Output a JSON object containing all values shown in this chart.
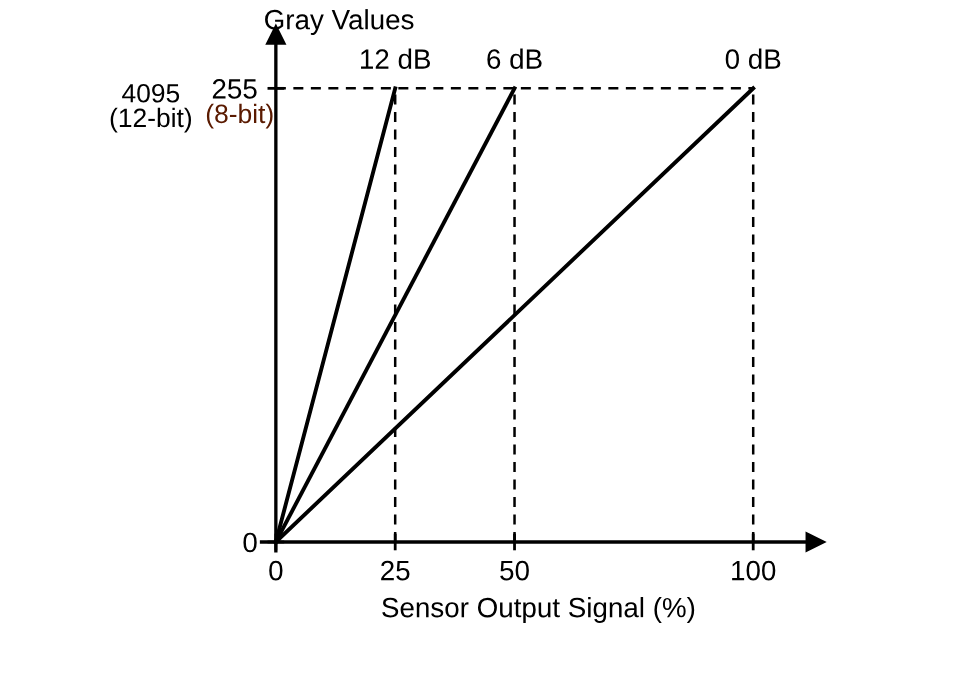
{
  "chart_data": {
    "type": "line",
    "xlabel": "Sensor Output Signal (%)",
    "ylabel": "Gray Values",
    "series": [
      {
        "name": "12 dB",
        "color": "#000000",
        "x": [
          0,
          25
        ],
        "values": [
          0,
          255
        ]
      },
      {
        "name": "6 dB",
        "color": "#000000",
        "x": [
          0,
          50
        ],
        "values": [
          0,
          255
        ]
      },
      {
        "name": "0 dB",
        "color": "#000000",
        "x": [
          0,
          100
        ],
        "values": [
          0,
          255
        ]
      }
    ],
    "xlim": [
      -3,
      113
    ],
    "ylim": [
      -5,
      285
    ],
    "xticks": [
      0,
      25,
      50,
      100
    ],
    "yticks": [
      0,
      255
    ],
    "annotations": [
      "(8-bit)",
      "4095\n(12-bit)"
    ],
    "ref_lines": [
      {
        "axis": "x",
        "value": 25,
        "line_style": "dashed",
        "color": "#000000"
      },
      {
        "axis": "x",
        "value": 50,
        "line_style": "dashed",
        "color": "#000000"
      },
      {
        "axis": "x",
        "value": 100,
        "line_style": "dashed",
        "color": "#000000"
      },
      {
        "axis": "y",
        "value": 255,
        "line_style": "dashed",
        "color": "#000000"
      }
    ],
    "grid": false,
    "legend": false,
    "line_style": "solid"
  }
}
